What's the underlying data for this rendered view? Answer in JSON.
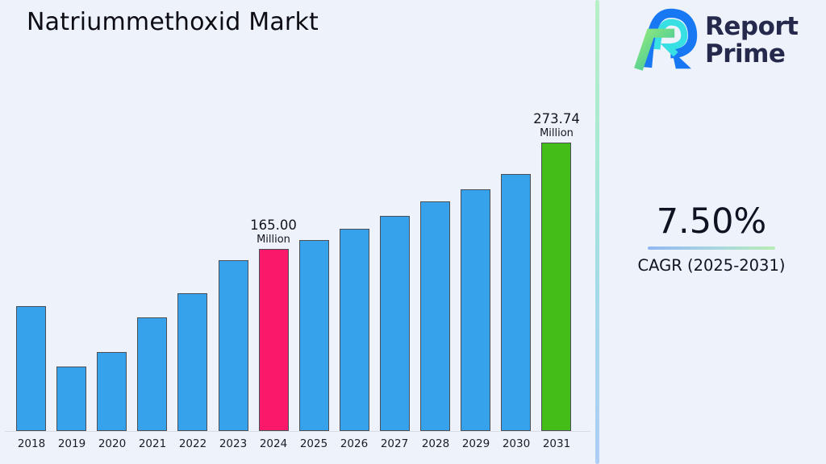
{
  "page": {
    "title": "Natriummethoxid Markt",
    "background": "#EDF2FB"
  },
  "brand": {
    "name": "Report Prime",
    "wordmark_line1": "Report",
    "wordmark_line2": "Prime",
    "wordmark_color": "#252A4D",
    "icon": "reportprime-stylized-r-icon",
    "icon_colors": {
      "blue": "#1877F2",
      "cyan": "#38DFE3",
      "green_start": "#90E97E",
      "green_end": "#2CBEA2"
    }
  },
  "cagr_panel": {
    "value": "7.50%",
    "label": "CAGR (2025-2031)",
    "underline_gradient": [
      "#92B7F3",
      "#B7EDB5"
    ]
  },
  "divider": {
    "gradient": [
      "#B7F0C6",
      "#A6E7D6",
      "#A4D9E9",
      "#AECDF7"
    ]
  },
  "chart_data": {
    "type": "bar",
    "title": "Natriummethoxid Markt",
    "categories": [
      "2018",
      "2019",
      "2020",
      "2021",
      "2022",
      "2023",
      "2024",
      "2025",
      "2026",
      "2027",
      "2028",
      "2029",
      "2030",
      "2031"
    ],
    "values": [
      107,
      45,
      60,
      95,
      120,
      154,
      165.0,
      174,
      186,
      199,
      214,
      226,
      242,
      273.74
    ],
    "unit": "Million",
    "value_precision_note": "only 2024 and 2031 are labeled in the figure; other values estimated from bar heights",
    "annotated_bars": [
      {
        "category": "2024",
        "value_text": "165.00",
        "unit": "Million"
      },
      {
        "category": "2031",
        "value_text": "273.74",
        "unit": "Million"
      }
    ],
    "colors": {
      "default": "#36A2EB",
      "highlights": {
        "2024": "#F9186A",
        "2031": "#44BD19"
      },
      "border": "#4A4F58"
    },
    "xlabel": "",
    "ylabel": "",
    "legend": false,
    "grid": false,
    "baseline_axis": true
  }
}
